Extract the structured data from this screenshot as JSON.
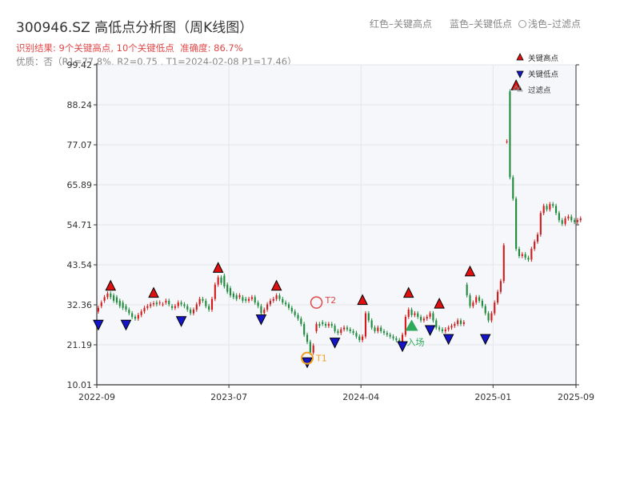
{
  "title": "300946.SZ 高低点分析图（周K线图）",
  "header_legend": {
    "red": "红色–关键高点",
    "blue": "蓝色–关键低点",
    "light": "浅色–过滤点"
  },
  "subtitle_result": "识别结果: 9个关键高点, 10个关键低点",
  "subtitle_accuracy": "准确度: 86.7%",
  "subtitle_quality": "优质：否（R1=77.8%, R2=0.75 , T1=2024-02-08 P1=17.46）",
  "colors": {
    "up": "#d31a1a",
    "down": "#1f8a3b",
    "high": "#e01010",
    "low": "#1414c8",
    "annot": "#f0a020",
    "entry": "#2eaa5a",
    "t2": "#e04848"
  },
  "chart_data": {
    "type": "candlestick",
    "xlabel": "",
    "ylabel": "",
    "ylim": [
      10.01,
      99.42
    ],
    "yticks": [
      10.01,
      21.19,
      32.36,
      43.54,
      54.71,
      65.89,
      77.07,
      88.24,
      99.42
    ],
    "xticks": [
      "2022-09",
      "2023-07",
      "2024-04",
      "2025-01",
      "2025-09"
    ],
    "x_range_weeks": [
      0,
      156
    ],
    "xtick_weeks": [
      0,
      43,
      86,
      129,
      156
    ],
    "series": [
      {
        "name": "",
        "values": [
          30.5,
          32.0,
          33.5,
          34.5,
          35.5,
          35.0,
          34.5,
          33.5,
          33.0,
          32.0,
          31.0,
          30.0,
          29.0,
          28.5,
          29.5,
          30.5,
          31.5,
          32.0,
          32.5,
          33.0,
          32.8,
          32.5,
          33.0,
          33.5,
          32.0,
          31.5,
          32.0,
          33.0,
          32.5,
          32.0,
          31.0,
          30.0,
          31.0,
          32.5,
          34.0,
          33.5,
          32.0,
          31.0,
          34.0,
          38.0,
          40.0,
          40.5,
          38.0,
          37.0,
          35.5,
          35.0,
          34.5,
          34.5,
          34.0,
          33.5,
          34.0,
          34.5,
          33.0,
          32.0,
          30.0,
          31.0,
          32.5,
          33.5,
          34.0,
          35.0,
          34.0,
          33.0,
          32.5,
          31.5,
          30.5,
          29.5,
          28.5,
          27.0,
          24.0,
          22.0,
          19.0,
          25.0,
          27.0,
          27.5,
          27.0,
          26.5,
          27.0,
          26.5,
          25.0,
          24.5,
          25.5,
          26.0,
          25.5,
          25.0,
          24.5,
          23.5,
          22.5,
          23.5,
          30.0,
          28.0,
          26.0,
          25.0,
          26.0,
          25.0,
          24.5,
          24.0,
          23.5,
          23.0,
          22.5,
          22.0,
          24.0,
          29.0,
          31.0,
          29.5,
          30.0,
          29.0,
          28.0,
          28.5,
          29.0,
          30.0,
          28.0,
          26.0,
          25.5,
          25.0,
          25.5,
          26.0,
          26.5,
          27.0,
          28.0,
          27.0,
          38.0,
          35.0,
          32.0,
          33.0,
          34.5,
          33.5,
          32.0,
          30.0,
          28.0,
          30.0,
          33.0,
          36.0,
          39.0,
          78.0,
          92.0,
          68.0,
          62.0,
          48.0,
          46.0,
          46.5,
          45.5,
          45.0,
          48.0,
          50.0,
          52.0,
          58.0,
          60.0,
          59.0,
          60.5,
          60.0,
          58.0,
          56.0,
          55.0,
          56.5,
          57.0,
          56.0,
          55.5,
          56.0
        ]
      }
    ],
    "candles_close": [
      31.5,
      33.0,
      34.5,
      35.5,
      34.5,
      33.5,
      33.0,
      32.0,
      31.5,
      31.0,
      30.0,
      29.0,
      28.5,
      29.5,
      30.5,
      31.5,
      32.0,
      32.5,
      32.8,
      32.5,
      33.0,
      32.5,
      33.5,
      32.5,
      31.5,
      32.0,
      33.0,
      32.5,
      32.0,
      31.0,
      30.0,
      31.0,
      32.5,
      34.0,
      33.5,
      32.0,
      31.0,
      34.0,
      38.0,
      40.0,
      38.5,
      37.5,
      36.0,
      35.0,
      34.5,
      34.0,
      35.0,
      33.5,
      33.5,
      34.0,
      34.5,
      33.0,
      32.0,
      30.0,
      31.0,
      32.5,
      33.5,
      34.0,
      35.0,
      34.0,
      33.0,
      32.5,
      31.5,
      30.5,
      29.5,
      28.5,
      27.0,
      24.0,
      22.0,
      19.0,
      21.0,
      27.0,
      26.5,
      27.0,
      26.5,
      27.0,
      26.5,
      25.0,
      24.5,
      25.5,
      26.0,
      25.5,
      25.0,
      24.5,
      23.5,
      22.5,
      23.5,
      30.0,
      28.0,
      26.0,
      25.0,
      26.0,
      25.0,
      24.5,
      24.0,
      23.5,
      23.0,
      22.5,
      22.0,
      24.0,
      29.0,
      31.0,
      29.5,
      30.0,
      29.0,
      28.0,
      28.5,
      29.0,
      30.0,
      28.0,
      26.0,
      25.5,
      25.0,
      25.5,
      26.0,
      26.5,
      27.0,
      28.0,
      27.0,
      27.5,
      35.0,
      32.0,
      33.0,
      34.5,
      33.5,
      32.0,
      30.0,
      28.0,
      30.0,
      33.0,
      36.0,
      39.0,
      49.0,
      78.0,
      68.0,
      62.0,
      48.0,
      46.0,
      46.5,
      45.5,
      45.0,
      48.0,
      50.0,
      52.0,
      58.0,
      60.0,
      59.0,
      60.5,
      60.0,
      58.0,
      56.0,
      55.0,
      56.5,
      57.0,
      56.0,
      55.5,
      56.0,
      56.5
    ],
    "key_highs": [
      {
        "week": 4,
        "price": 36.0
      },
      {
        "week": 18,
        "price": 34.0
      },
      {
        "week": 39,
        "price": 41.0
      },
      {
        "week": 58,
        "price": 36.0
      },
      {
        "week": 86,
        "price": 32.0
      },
      {
        "week": 101,
        "price": 34.0
      },
      {
        "week": 111,
        "price": 31.0
      },
      {
        "week": 121,
        "price": 40.0
      },
      {
        "week": 136,
        "price": 92.0
      }
    ],
    "key_lows": [
      {
        "week": 0,
        "price": 28.5
      },
      {
        "week": 9,
        "price": 28.5
      },
      {
        "week": 27,
        "price": 29.5
      },
      {
        "week": 53,
        "price": 30.0
      },
      {
        "week": 68,
        "price": 18.0
      },
      {
        "week": 77,
        "price": 23.5
      },
      {
        "week": 99,
        "price": 22.5
      },
      {
        "week": 108,
        "price": 27.0
      },
      {
        "week": 114,
        "price": 24.5
      },
      {
        "week": 126,
        "price": 24.5
      }
    ],
    "filtered_points": [
      {
        "week": 136,
        "price": 92.0
      }
    ],
    "annotations": [
      {
        "label": "T1",
        "week": 68,
        "price": 17.46
      },
      {
        "label": "T2",
        "week": 71,
        "price": 33.0
      },
      {
        "label": "入场",
        "week": 102,
        "price": 26.0
      }
    ],
    "legend": [
      "关键高点",
      "关键低点",
      "过滤点"
    ],
    "legend_position": "top-right",
    "grid": true
  }
}
